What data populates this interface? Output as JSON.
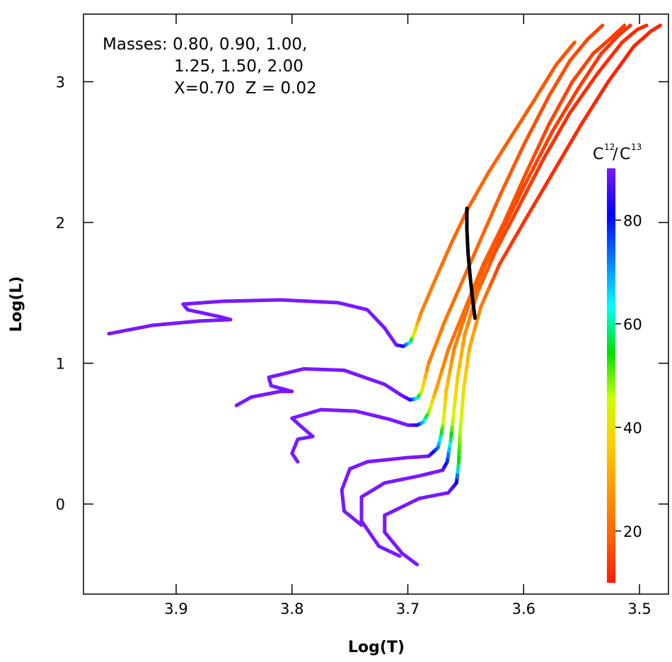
{
  "chart_data": {
    "type": "line",
    "xlabel": "Log(T)",
    "ylabel": "Log(L)",
    "xlim": [
      3.98,
      3.475
    ],
    "ylim": [
      -0.64,
      3.48
    ],
    "x_ticks": [
      "3.9",
      "3.8",
      "3.7",
      "3.6",
      "3.5"
    ],
    "y_ticks": [
      "0",
      "1",
      "2",
      "3"
    ],
    "annotations": [
      "Masses: 0.80, 0.90, 1.00,",
      "1.25, 1.50, 2.00",
      "X=0.70  Z = 0.02"
    ],
    "colorbar": {
      "title_base_1": "C",
      "title_sup_1": "12",
      "title_sep": "/",
      "title_base_2": "C",
      "title_sup_2": "13",
      "range": [
        10,
        90
      ],
      "ticks": [
        "20",
        "40",
        "60",
        "80"
      ],
      "colors": [
        "#ff1a00",
        "#ff6400",
        "#ff9800",
        "#ffcc00",
        "#ccff00",
        "#00e000",
        "#00ffff",
        "#0080ff",
        "#0000ff",
        "#7a18ff"
      ]
    },
    "series": [
      {
        "points": [
          [
            3.958,
            1.21
          ],
          [
            3.92,
            1.27
          ],
          [
            3.88,
            1.3
          ],
          [
            3.853,
            1.31
          ],
          [
            3.862,
            1.33
          ],
          [
            3.89,
            1.38
          ],
          [
            3.894,
            1.42
          ],
          [
            3.86,
            1.44
          ],
          [
            3.81,
            1.45
          ],
          [
            3.76,
            1.43
          ],
          [
            3.735,
            1.38
          ],
          [
            3.72,
            1.25
          ],
          [
            3.71,
            1.13
          ],
          [
            3.704,
            1.12
          ],
          [
            3.698,
            1.15
          ],
          [
            3.695,
            1.2
          ],
          [
            3.689,
            1.35
          ],
          [
            3.676,
            1.6
          ],
          [
            3.662,
            1.86
          ],
          [
            3.648,
            2.1
          ],
          [
            3.63,
            2.36
          ],
          [
            3.61,
            2.62
          ],
          [
            3.59,
            2.88
          ],
          [
            3.572,
            3.12
          ],
          [
            3.556,
            3.28
          ]
        ],
        "c12c13": [
          90,
          90,
          90,
          90,
          90,
          90,
          90,
          90,
          90,
          90,
          90,
          90,
          90,
          82,
          65,
          45,
          24,
          22,
          20,
          19,
          19,
          18,
          18,
          17,
          17
        ]
      },
      {
        "points": [
          [
            3.848,
            0.7
          ],
          [
            3.835,
            0.76
          ],
          [
            3.81,
            0.8
          ],
          [
            3.8,
            0.8
          ],
          [
            3.818,
            0.84
          ],
          [
            3.82,
            0.9
          ],
          [
            3.79,
            0.96
          ],
          [
            3.755,
            0.95
          ],
          [
            3.72,
            0.85
          ],
          [
            3.705,
            0.77
          ],
          [
            3.698,
            0.74
          ],
          [
            3.692,
            0.75
          ],
          [
            3.688,
            0.8
          ],
          [
            3.682,
            1.0
          ],
          [
            3.668,
            1.3
          ],
          [
            3.652,
            1.6
          ],
          [
            3.636,
            1.9
          ],
          [
            3.62,
            2.2
          ],
          [
            3.6,
            2.55
          ],
          [
            3.578,
            2.9
          ],
          [
            3.56,
            3.15
          ],
          [
            3.545,
            3.3
          ],
          [
            3.532,
            3.4
          ]
        ],
        "c12c13": [
          90,
          90,
          90,
          90,
          90,
          90,
          90,
          90,
          90,
          90,
          85,
          65,
          45,
          24,
          22,
          20,
          19,
          18,
          17,
          16,
          16,
          15,
          15
        ]
      },
      {
        "points": [
          [
            3.795,
            0.3
          ],
          [
            3.8,
            0.36
          ],
          [
            3.795,
            0.46
          ],
          [
            3.782,
            0.48
          ],
          [
            3.792,
            0.55
          ],
          [
            3.8,
            0.61
          ],
          [
            3.775,
            0.67
          ],
          [
            3.745,
            0.66
          ],
          [
            3.715,
            0.6
          ],
          [
            3.7,
            0.56
          ],
          [
            3.692,
            0.56
          ],
          [
            3.687,
            0.58
          ],
          [
            3.682,
            0.65
          ],
          [
            3.676,
            0.8
          ],
          [
            3.665,
            1.1
          ],
          [
            3.65,
            1.4
          ],
          [
            3.635,
            1.7
          ],
          [
            3.617,
            2.0
          ],
          [
            3.598,
            2.35
          ],
          [
            3.578,
            2.7
          ],
          [
            3.558,
            3.0
          ],
          [
            3.54,
            3.2
          ],
          [
            3.526,
            3.3
          ],
          [
            3.513,
            3.4
          ]
        ],
        "c12c13": [
          90,
          90,
          90,
          90,
          90,
          90,
          90,
          90,
          90,
          90,
          85,
          70,
          50,
          30,
          22,
          20,
          18,
          17,
          16,
          15,
          15,
          14,
          14,
          14
        ]
      },
      {
        "points": [
          [
            3.74,
            -0.15
          ],
          [
            3.755,
            -0.05
          ],
          [
            3.757,
            0.1
          ],
          [
            3.75,
            0.25
          ],
          [
            3.735,
            0.3
          ],
          [
            3.7,
            0.33
          ],
          [
            3.682,
            0.34
          ],
          [
            3.674,
            0.4
          ],
          [
            3.671,
            0.5
          ],
          [
            3.669,
            0.6
          ],
          [
            3.667,
            0.8
          ],
          [
            3.66,
            1.1
          ],
          [
            3.648,
            1.4
          ],
          [
            3.633,
            1.7
          ],
          [
            3.615,
            2.0
          ],
          [
            3.597,
            2.3
          ],
          [
            3.575,
            2.65
          ],
          [
            3.553,
            2.95
          ],
          [
            3.533,
            3.2
          ],
          [
            3.518,
            3.33
          ],
          [
            3.508,
            3.4
          ]
        ],
        "c12c13": [
          90,
          90,
          90,
          90,
          90,
          90,
          90,
          75,
          58,
          44,
          36,
          24,
          20,
          18,
          16,
          15,
          14,
          14,
          13,
          13,
          13
        ]
      },
      {
        "points": [
          [
            3.707,
            -0.37
          ],
          [
            3.725,
            -0.3
          ],
          [
            3.74,
            -0.12
          ],
          [
            3.74,
            0.05
          ],
          [
            3.72,
            0.15
          ],
          [
            3.69,
            0.2
          ],
          [
            3.67,
            0.24
          ],
          [
            3.666,
            0.3
          ],
          [
            3.663,
            0.45
          ],
          [
            3.661,
            0.6
          ],
          [
            3.657,
            0.9
          ],
          [
            3.651,
            1.2
          ],
          [
            3.64,
            1.5
          ],
          [
            3.624,
            1.8
          ],
          [
            3.605,
            2.1
          ],
          [
            3.583,
            2.45
          ],
          [
            3.56,
            2.78
          ],
          [
            3.537,
            3.05
          ],
          [
            3.515,
            3.28
          ],
          [
            3.502,
            3.37
          ],
          [
            3.494,
            3.4
          ]
        ],
        "c12c13": [
          90,
          90,
          90,
          90,
          90,
          90,
          90,
          80,
          60,
          45,
          36,
          28,
          20,
          16,
          14,
          13,
          12,
          12,
          12,
          12,
          12
        ]
      },
      {
        "points": [
          [
            3.692,
            -0.43
          ],
          [
            3.705,
            -0.35
          ],
          [
            3.72,
            -0.2
          ],
          [
            3.72,
            -0.08
          ],
          [
            3.69,
            0.04
          ],
          [
            3.665,
            0.08
          ],
          [
            3.658,
            0.15
          ],
          [
            3.656,
            0.3
          ],
          [
            3.655,
            0.5
          ],
          [
            3.652,
            0.8
          ],
          [
            3.647,
            1.1
          ],
          [
            3.637,
            1.4
          ],
          [
            3.621,
            1.7
          ],
          [
            3.6,
            2.0
          ],
          [
            3.575,
            2.35
          ],
          [
            3.55,
            2.7
          ],
          [
            3.527,
            3.0
          ],
          [
            3.505,
            3.25
          ],
          [
            3.49,
            3.36
          ],
          [
            3.482,
            3.4
          ]
        ],
        "c12c13": [
          90,
          90,
          90,
          90,
          90,
          90,
          85,
          55,
          48,
          40,
          32,
          24,
          14,
          13,
          12,
          12,
          11,
          11,
          11,
          11
        ]
      }
    ],
    "black_line": [
      [
        3.649,
        2.1
      ],
      [
        3.649,
        1.95
      ],
      [
        3.648,
        1.78
      ],
      [
        3.646,
        1.6
      ],
      [
        3.644,
        1.45
      ],
      [
        3.642,
        1.32
      ]
    ]
  }
}
